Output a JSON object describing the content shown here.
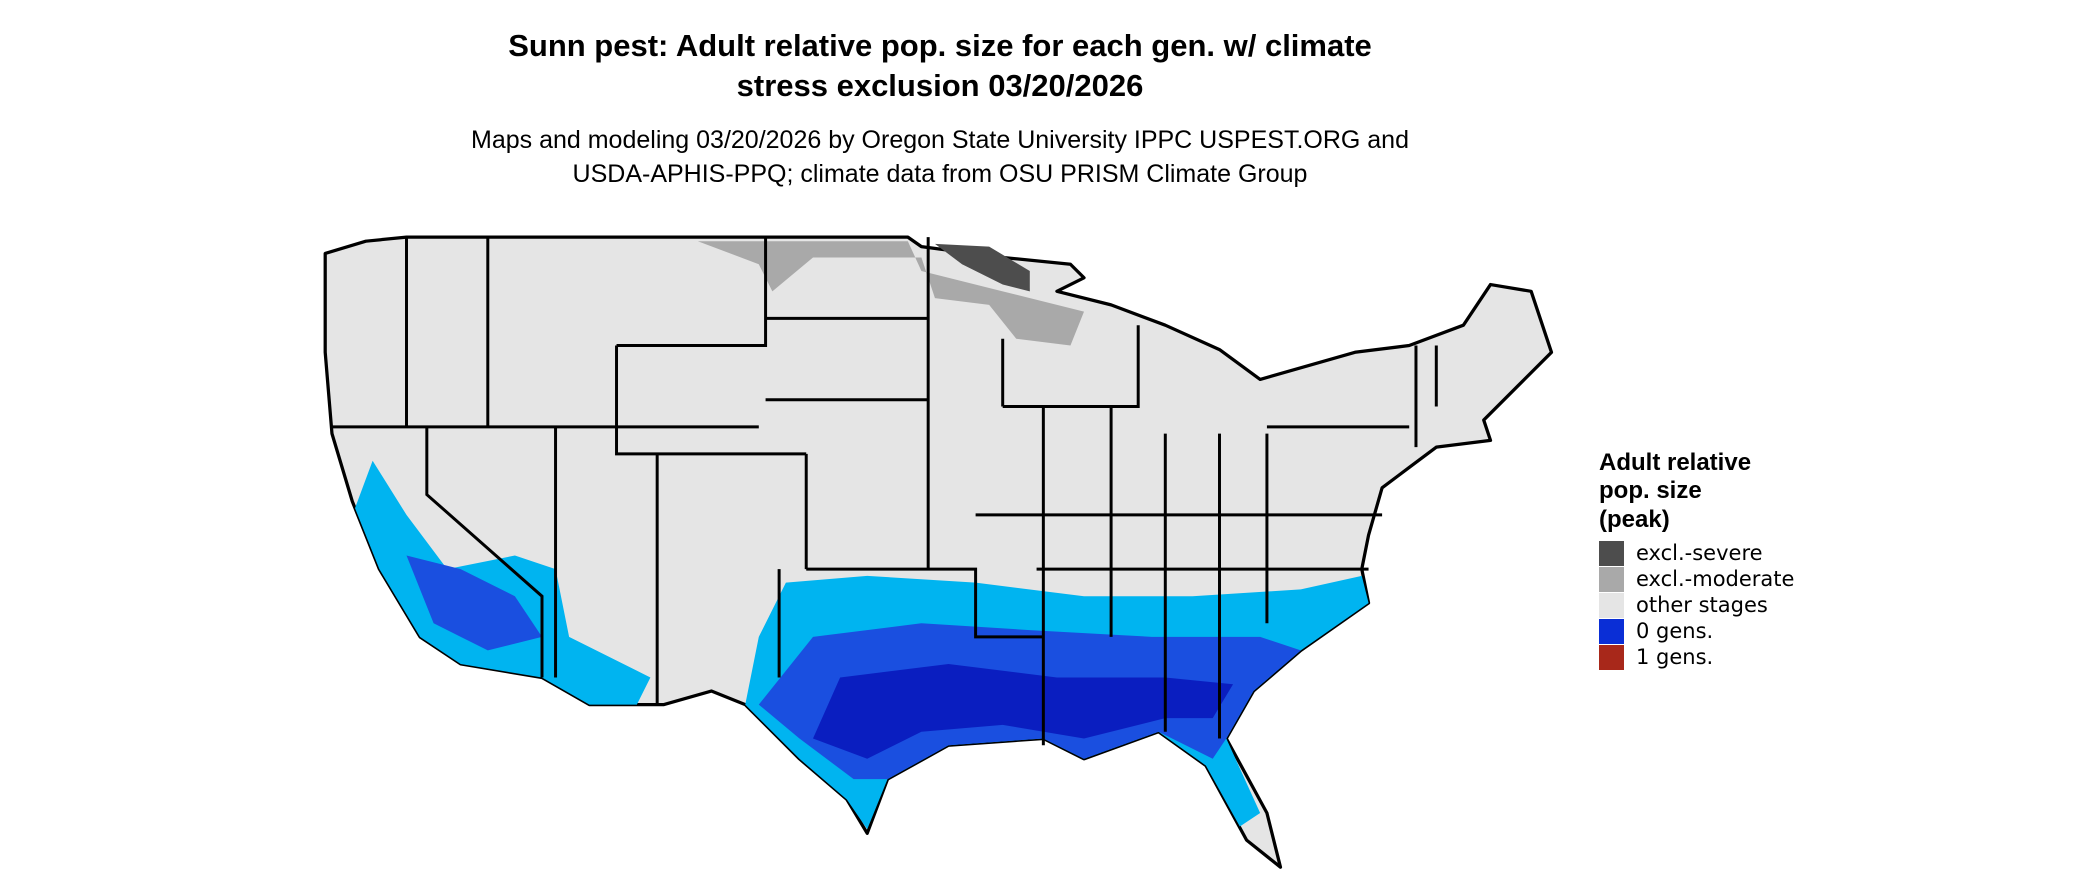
{
  "title": [
    "Sunn pest: Adult relative pop. size for each gen. w/ climate",
    "stress exclusion 03/20/2026"
  ],
  "subtitle": [
    "Maps and modeling 03/20/2026 by Oregon State University IPPC USPEST.ORG and",
    "USDA-APHIS-PPQ; climate data from OSU PRISM Climate Group"
  ],
  "legend": {
    "title": [
      "Adult relative",
      "pop. size",
      "(peak)"
    ],
    "items": [
      {
        "label": "excl.-severe",
        "color": "#4d4d4d"
      },
      {
        "label": "excl.-moderate",
        "color": "#a9a9a9"
      },
      {
        "label": "other stages",
        "color": "#e5e5e5"
      },
      {
        "label": "0 gens.",
        "color": "#0a2ed6"
      },
      {
        "label": "1 gens.",
        "color": "#a8281a"
      }
    ]
  }
}
